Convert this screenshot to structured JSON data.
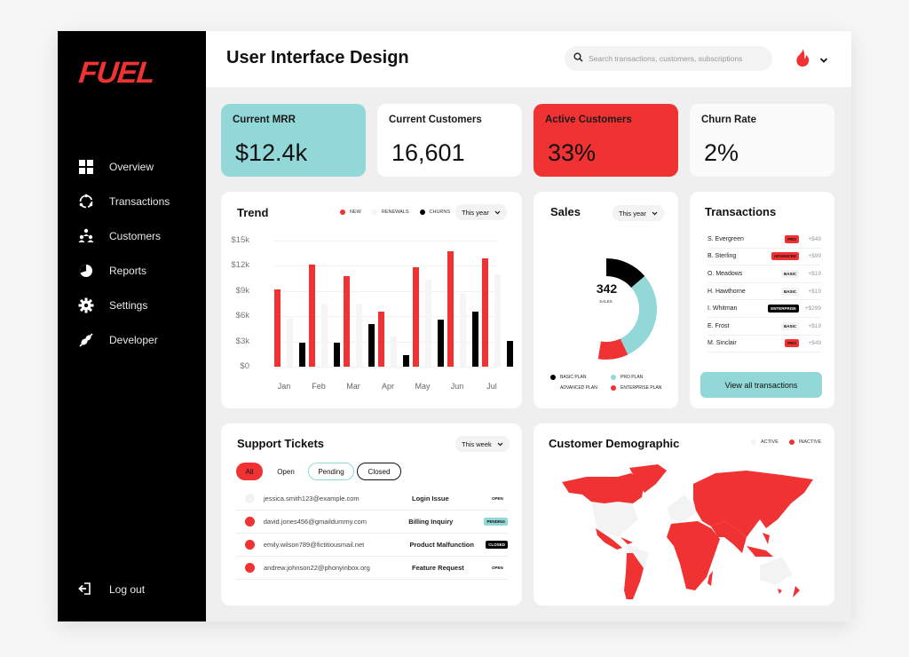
{
  "app": {
    "logo": "FUEL",
    "page_title": "User Interface Design"
  },
  "colors": {
    "red": "#f03232",
    "teal": "#93d8d8",
    "black": "#000000",
    "light": "#f5f5f5"
  },
  "search": {
    "placeholder": "Search transactions, customers, subscriptions",
    "value": ""
  },
  "user_menu": {
    "avatar_icon": "flame-icon",
    "chevron_icon": "chevron-down-icon"
  },
  "sidebar": {
    "items": [
      {
        "label": "Overview",
        "icon": "grid-icon"
      },
      {
        "label": "Transactions",
        "icon": "cycle-icon"
      },
      {
        "label": "Customers",
        "icon": "users-icon"
      },
      {
        "label": "Reports",
        "icon": "pie-chart-icon"
      },
      {
        "label": "Settings",
        "icon": "gear-icon"
      },
      {
        "label": "Developer",
        "icon": "plug-icon"
      }
    ],
    "logout": {
      "label": "Log out",
      "icon": "logout-icon"
    }
  },
  "kpis": [
    {
      "label": "Current MRR",
      "value": "$12.4k"
    },
    {
      "label": "Current Customers",
      "value": "16,601"
    },
    {
      "label": "Active Customers",
      "value": "33%"
    },
    {
      "label": "Churn Rate",
      "value": "2%"
    }
  ],
  "trend": {
    "title": "Trend",
    "dropdown": "This year",
    "legend": [
      "NEW",
      "RENEWALS",
      "CHURNS"
    ]
  },
  "sales": {
    "title": "Sales",
    "dropdown": "This year",
    "total": "342",
    "total_label": "SALES",
    "legend": [
      "BASIC PLAN",
      "PRO PLAN",
      "ADVANCED PLAN",
      "ENTERPRISE PLAN"
    ]
  },
  "transactions": {
    "title": "Transactions",
    "rows": [
      {
        "name": "S. Evergreen",
        "plan": "PRO",
        "amount": "+$49"
      },
      {
        "name": "B. Sterling",
        "plan": "ADVANCED",
        "amount": "+$99"
      },
      {
        "name": "O. Meadows",
        "plan": "BASIC",
        "amount": "+$19"
      },
      {
        "name": "H. Hawthorne",
        "plan": "BASIC",
        "amount": "+$19"
      },
      {
        "name": "I. Whitman",
        "plan": "ENTERPRISE",
        "amount": "+$299"
      },
      {
        "name": "E. Frost",
        "plan": "BASIC",
        "amount": "+$19"
      },
      {
        "name": "M. Sinclair",
        "plan": "PRO",
        "amount": "+$49"
      }
    ],
    "view_all": "View all transactions"
  },
  "tickets": {
    "title": "Support Tickets",
    "dropdown": "This week",
    "filters": [
      "All",
      "Open",
      "Pending",
      "Closed"
    ],
    "rows": [
      {
        "email": "jessica.smith123@example.com",
        "subject": "Login Issue",
        "status": "OPEN",
        "active": false
      },
      {
        "email": "david.jones456@gmaildummy.com",
        "subject": "Billing Inquiry",
        "status": "PENDING",
        "active": true
      },
      {
        "email": "emily.wilson789@fictitiousmail.net",
        "subject": "Product Malfunction",
        "status": "CLOSED",
        "active": true
      },
      {
        "email": "andrew.johnson22@phonyinbox.org",
        "subject": "Feature Request",
        "status": "OPEN",
        "active": true
      }
    ]
  },
  "demographic": {
    "title": "Customer Demographic",
    "legend": [
      "ACTIVE",
      "INACTIVE"
    ]
  },
  "chart_data": [
    {
      "type": "bar",
      "title": "Trend",
      "categories": [
        "Jan",
        "Feb",
        "Mar",
        "Apr",
        "May",
        "Jun",
        "Jul"
      ],
      "series": [
        {
          "name": "NEW",
          "color": "#f03232",
          "values": [
            9.2,
            12.1,
            10.8,
            6.5,
            11.8,
            13.7,
            12.9
          ]
        },
        {
          "name": "RENEWALS",
          "color": "#f5f5f5",
          "values": [
            5.8,
            7.5,
            7.5,
            3.6,
            10.4,
            8.8,
            11.0
          ]
        },
        {
          "name": "CHURNS",
          "color": "#000000",
          "values": [
            2.8,
            2.9,
            5.1,
            1.4,
            5.6,
            6.5,
            3.1
          ]
        }
      ],
      "yticks": [
        "$0",
        "$3k",
        "$6k",
        "$9k",
        "$12k",
        "$15k"
      ],
      "ylim": [
        0,
        15
      ],
      "ylabel": "",
      "xlabel": "",
      "unit": "$k",
      "grid": true,
      "legend_position": "top-right"
    },
    {
      "type": "pie",
      "title": "Sales",
      "center_value": 342,
      "center_label": "SALES",
      "series": [
        {
          "name": "BASIC PLAN",
          "color": "#000000",
          "value": 47
        },
        {
          "name": "PRO PLAN",
          "color": "#93d8d8",
          "value": 100
        },
        {
          "name": "ENTERPRISE PLAN",
          "color": "#f03232",
          "value": 33
        },
        {
          "name": "ADVANCED PLAN",
          "color": "#ffffff",
          "value": 162
        }
      ],
      "legend_position": "bottom"
    }
  ]
}
